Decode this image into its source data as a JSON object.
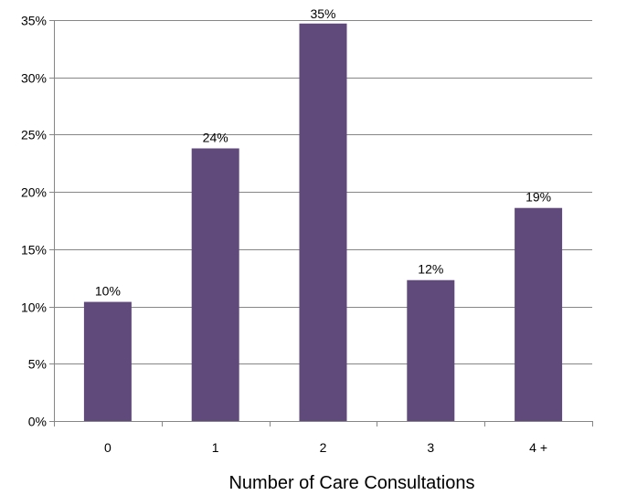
{
  "chart_data": {
    "type": "bar",
    "categories": [
      "0",
      "1",
      "2",
      "3",
      "4 +"
    ],
    "values": [
      10.4,
      23.8,
      34.7,
      12.3,
      18.6
    ],
    "data_labels": [
      "10%",
      "24%",
      "35%",
      "12%",
      "19%"
    ],
    "xlabel": "Number of Care Consultations",
    "ylim": [
      0,
      35
    ],
    "y_ticks": [
      0,
      5,
      10,
      15,
      20,
      25,
      30,
      35
    ],
    "y_tick_labels": [
      "0%",
      "5%",
      "10%",
      "15%",
      "20%",
      "25%",
      "30%",
      "35%"
    ],
    "grid": true,
    "legend": "none",
    "colors": {
      "bar": "#604a7b",
      "grid": "#868686",
      "axis": "#868686"
    }
  }
}
